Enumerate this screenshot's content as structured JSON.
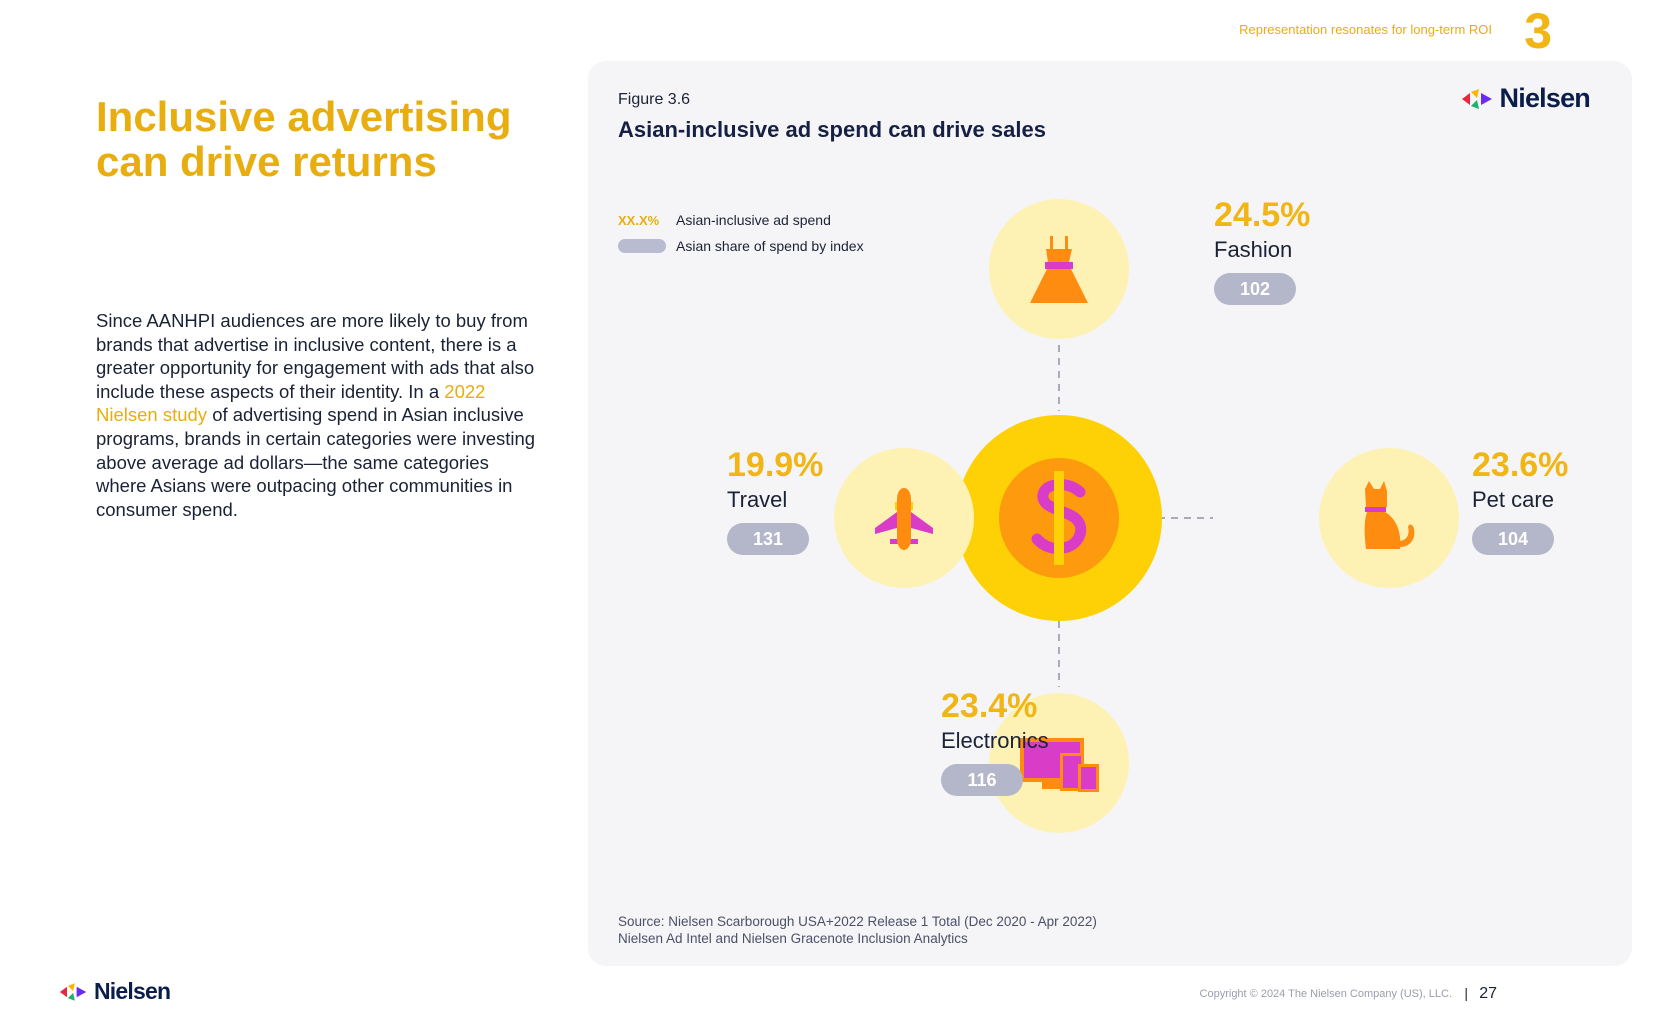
{
  "header": {
    "tag": "Representation resonates for long-term ROI",
    "section_number": "3"
  },
  "headline": {
    "line1": "Inclusive advertising",
    "line2": "can drive returns"
  },
  "body": {
    "text_before": "Since AANHPI audiences are more likely to buy from brands that advertise in inclusive content, there is a greater opportunity for engagement with ads that also include these aspects of their identity. In a ",
    "link": "2022 Nielsen study",
    "text_after": " of advertising spend in Asian inclusive programs, brands in certain categories were investing above average ad dollars—the same categories where Asians were outpacing other communities in consumer spend."
  },
  "figure": {
    "label": "Figure 3.6",
    "title": "Asian-inclusive ad spend can drive sales",
    "logo": "Nielsen",
    "legend": {
      "pct_sample": "XX.X%",
      "pct_label": "Asian-inclusive ad spend",
      "index_label": "Asian share of spend by index"
    },
    "center_icon": "dollar-sign-icon",
    "categories": [
      {
        "name": "Fashion",
        "pct": "24.5%",
        "index": "102",
        "icon": "dress-icon"
      },
      {
        "name": "Travel",
        "pct": "19.9%",
        "index": "131",
        "icon": "airplane-icon"
      },
      {
        "name": "Pet care",
        "pct": "23.6%",
        "index": "104",
        "icon": "cat-icon"
      },
      {
        "name": "Electronics",
        "pct": "23.4%",
        "index": "116",
        "icon": "devices-icon"
      }
    ],
    "source_line1": "Source: Nielsen Scarborough USA+2022 Release 1 Total (Dec 2020 - Apr 2022)",
    "source_line2": "Nielsen Ad Intel and Nielsen Gracenote Inclusion Analytics"
  },
  "colors": {
    "accent_yellow": "#f1b515",
    "circle_light": "#fdf2b3",
    "center_outer": "#fdd106",
    "center_inner": "#fd9a0d",
    "pill_gray": "#b4b6c9",
    "panel_bg": "#f5f5f7",
    "navy": "#152044"
  },
  "footer": {
    "logo": "Nielsen",
    "copyright": "Copyright © 2024 The Nielsen Company (US), LLC.",
    "separator": "|",
    "page": "27"
  }
}
